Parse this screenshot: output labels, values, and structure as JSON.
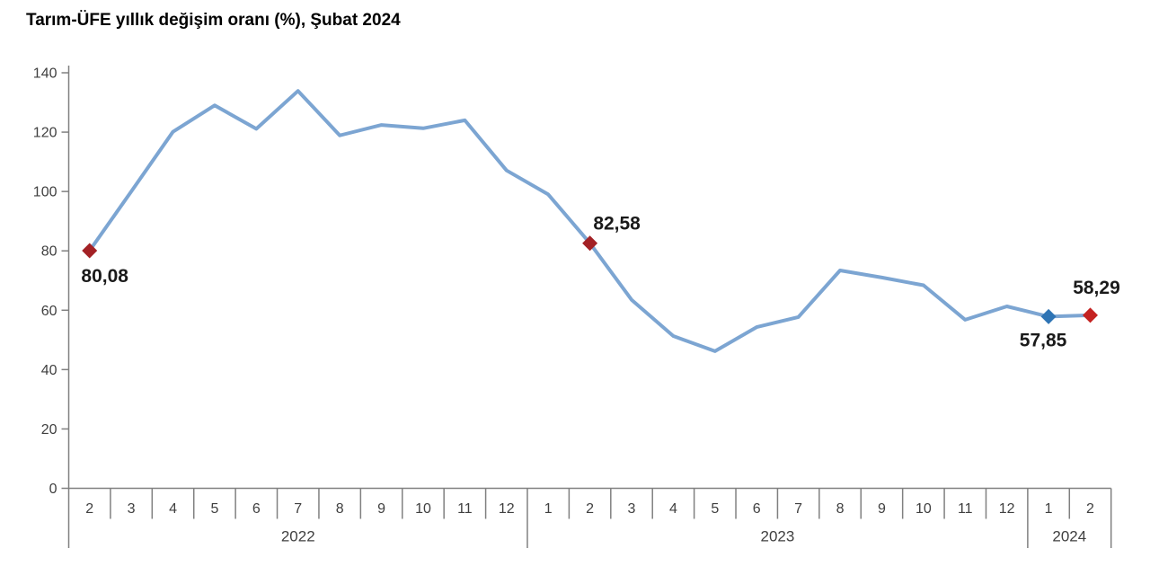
{
  "title": "Tarım-ÜFE yıllık değişim oranı (%), Şubat 2024",
  "colors": {
    "line": "#7CA5D2",
    "axis": "#808080",
    "tick_label": "#404040",
    "marker_red_dark": "#A32125",
    "marker_red_bright": "#C42221",
    "marker_blue": "#2E74B5",
    "data_label_text": "#1A1A1A",
    "background": "#FFFFFF"
  },
  "chart_data": {
    "type": "line",
    "title": "Tarım-ÜFE yıllık değişim oranı (%), Şubat 2024",
    "xlabel": "",
    "ylabel": "",
    "ylim": [
      0,
      140
    ],
    "ytick_step": 20,
    "yticks": [
      0,
      20,
      40,
      60,
      80,
      100,
      120,
      140
    ],
    "grid": false,
    "legend": "none",
    "x_groups": [
      {
        "year": "2022",
        "months": [
          2,
          3,
          4,
          5,
          6,
          7,
          8,
          9,
          10,
          11,
          12
        ]
      },
      {
        "year": "2023",
        "months": [
          1,
          2,
          3,
          4,
          5,
          6,
          7,
          8,
          9,
          10,
          11,
          12
        ]
      },
      {
        "year": "2024",
        "months": [
          1,
          2
        ]
      }
    ],
    "series": [
      {
        "name": "Tarım-ÜFE yıllık değişim oranı (%)",
        "values": [
          80.08,
          100.0,
          120.1,
          129.0,
          121.1,
          133.9,
          118.9,
          122.4,
          121.3,
          124.0,
          107.1,
          99.0,
          82.58,
          63.5,
          51.3,
          46.2,
          54.3,
          57.7,
          73.4,
          71.0,
          68.4,
          56.8,
          61.3,
          57.85,
          58.29
        ]
      }
    ],
    "highlighted_points": [
      {
        "index": 0,
        "month": "2022-02",
        "value": 80.08,
        "label": "80,08",
        "marker_color": "#A32125",
        "label_position": "below-right"
      },
      {
        "index": 12,
        "month": "2023-02",
        "value": 82.58,
        "label": "82,58",
        "marker_color": "#A32125",
        "label_position": "above-right"
      },
      {
        "index": 23,
        "month": "2024-01",
        "value": 57.85,
        "label": "57,85",
        "marker_color": "#2E74B5",
        "label_position": "below-left"
      },
      {
        "index": 24,
        "month": "2024-02",
        "value": 58.29,
        "label": "58,29",
        "marker_color": "#C42221",
        "label_position": "above"
      }
    ]
  }
}
